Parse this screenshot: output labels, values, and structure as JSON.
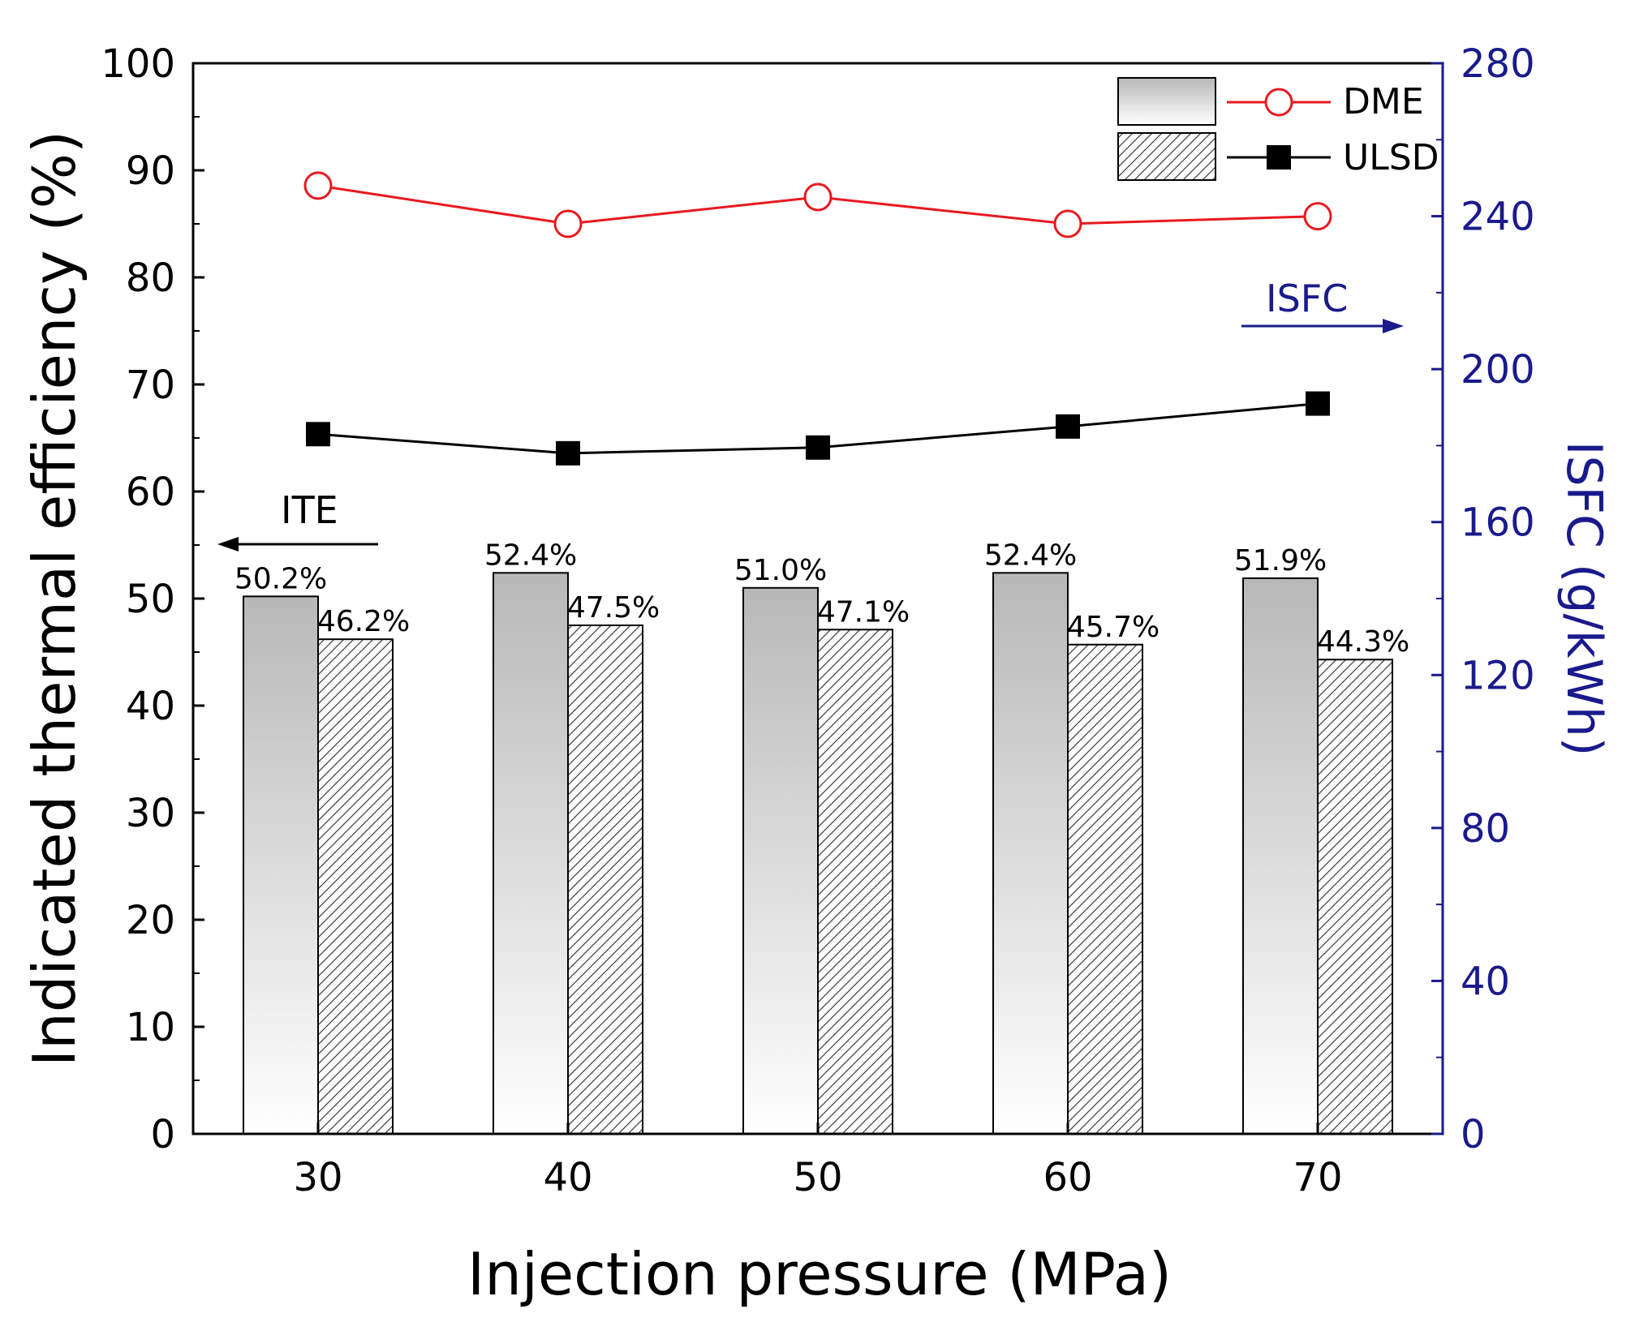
{
  "chart_data": {
    "type": "bar",
    "title": "",
    "xlabel": "Injection pressure (MPa)",
    "ylabel": "Indicated thermal efficiency (%)",
    "y2label": "ISFC (g/kWh)",
    "categories": [
      "30",
      "40",
      "50",
      "60",
      "70"
    ],
    "ylim": [
      0,
      100
    ],
    "yticks": [
      "0",
      "10",
      "20",
      "30",
      "40",
      "50",
      "60",
      "70",
      "80",
      "90",
      "100"
    ],
    "y2lim": [
      0,
      280
    ],
    "y2ticks": [
      "0",
      "40",
      "80",
      "120",
      "160",
      "200",
      "240",
      "280"
    ],
    "bars": [
      {
        "name": "DME",
        "style": "gradient",
        "values": [
          50.2,
          52.4,
          51.0,
          52.4,
          51.9
        ],
        "labels": [
          "50.2%",
          "52.4%",
          "51.0%",
          "52.4%",
          "51.9%"
        ]
      },
      {
        "name": "ULSD",
        "style": "hatched",
        "values": [
          46.2,
          47.5,
          47.1,
          45.7,
          44.3
        ],
        "labels": [
          "46.2%",
          "47.5%",
          "47.1%",
          "45.7%",
          "44.3%"
        ]
      }
    ],
    "lines": [
      {
        "name": "DME",
        "axis": "right",
        "color": "#e8191f",
        "marker": "open-circle",
        "values": [
          248,
          238,
          245,
          238,
          240
        ]
      },
      {
        "name": "ULSD",
        "axis": "right",
        "color": "#000000",
        "marker": "filled-square",
        "values": [
          183,
          178,
          179.5,
          185,
          191
        ]
      }
    ],
    "legend": {
      "position": "top-right",
      "entries": [
        "DME",
        "ULSD"
      ]
    },
    "annotations": {
      "ite": "ITE",
      "isfc": "ISFC"
    },
    "colors": {
      "left_axis": "#000000",
      "right_axis": "#1a1a8c",
      "dme_line": "#e8191f",
      "ulsd_line": "#000000"
    }
  }
}
